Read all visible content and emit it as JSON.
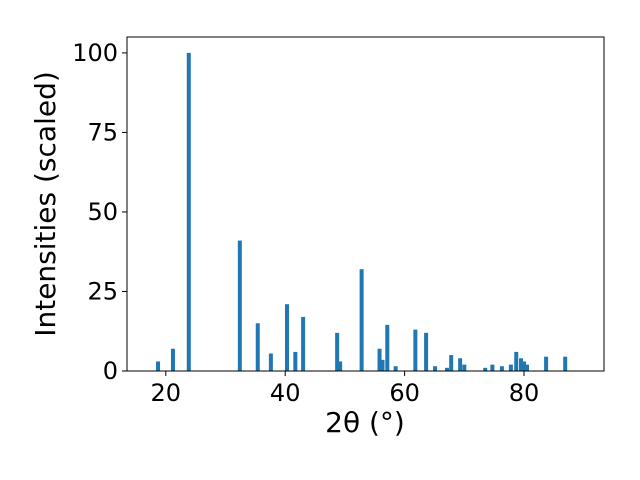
{
  "chart_data": {
    "type": "bar",
    "x_label": "2θ (°)",
    "y_label": "Intensities (scaled)",
    "color": "#1f77b4",
    "x": [
      18.7,
      21.2,
      23.85,
      32.4,
      35.4,
      37.6,
      40.3,
      41.7,
      43.0,
      48.7,
      49.2,
      52.8,
      55.8,
      56.3,
      57.1,
      58.5,
      61.8,
      63.6,
      65.1,
      67.1,
      67.8,
      69.3,
      70.0,
      73.5,
      74.7,
      76.3,
      77.8,
      78.7,
      79.5,
      80.0,
      80.5,
      83.7,
      86.9
    ],
    "values": [
      3,
      7,
      100,
      41,
      15,
      5.5,
      21,
      6,
      17,
      12,
      3,
      32,
      7,
      3.5,
      14.5,
      1.5,
      13,
      12,
      1.5,
      1,
      5,
      4,
      2,
      1,
      2,
      1.5,
      2,
      6,
      4,
      3,
      2,
      4.5,
      4.5
    ],
    "xlim": [
      13.5,
      93.4
    ],
    "ylim": [
      0,
      105
    ],
    "xticks": [
      20,
      40,
      60,
      80
    ],
    "yticks": [
      0,
      25,
      50,
      75,
      100
    ]
  }
}
